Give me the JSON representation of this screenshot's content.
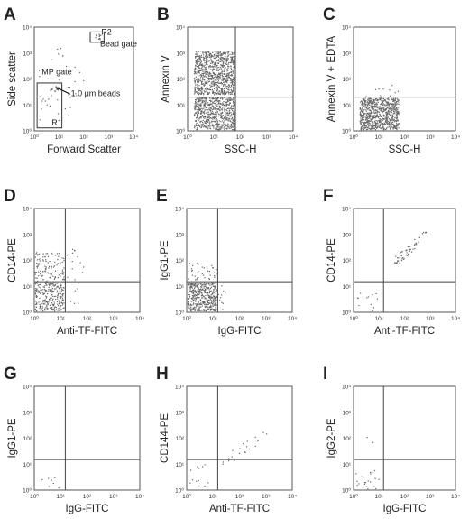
{
  "axis_tick_labels": [
    "10⁰",
    "10¹",
    "10²",
    "10³",
    "10⁴"
  ],
  "chart_data": [
    {
      "panel": "A",
      "type": "scatter",
      "xlabel": "Forward Scatter",
      "ylabel": "Side scatter",
      "xlim": [
        1,
        10000
      ],
      "ylim": [
        1,
        10000
      ],
      "scale": "log",
      "annotations": [
        {
          "text": "R2",
          "x": 500,
          "y": 5000
        },
        {
          "text": "Bead gate",
          "x": 450,
          "y": 1800
        },
        {
          "text": "MP gate",
          "x": 2,
          "y": 150
        },
        {
          "text": "1.0 μm beads",
          "x": 30,
          "y": 22
        },
        {
          "text": "R1",
          "x": 5,
          "y": 1.6
        }
      ],
      "gates": [
        {
          "name": "R2",
          "x": [
            180,
            650
          ],
          "y": [
            2600,
            6500
          ]
        },
        {
          "name": "R1",
          "x": [
            1.3,
            13
          ],
          "y": [
            1.3,
            70
          ]
        }
      ],
      "clusters": [
        {
          "x": [
            280,
            520
          ],
          "y": [
            3000,
            5200
          ],
          "n": 12
        },
        {
          "x": [
            4,
            8
          ],
          "y": [
            30,
            55
          ],
          "n": 8
        },
        {
          "x": [
            1.5,
            100
          ],
          "y": [
            4,
            2000
          ],
          "n": 28
        },
        {
          "x": [
            1.5,
            6
          ],
          "y": [
            1.3,
            25
          ],
          "n": 8
        }
      ]
    },
    {
      "panel": "B",
      "type": "scatter",
      "xlabel": "SSC-H",
      "ylabel": "Annexin V",
      "xlim": [
        1,
        10000
      ],
      "ylim": [
        1,
        10000
      ],
      "scale": "log",
      "quadrant": {
        "x": 65,
        "y": 20
      },
      "clusters": [
        {
          "x": [
            1.8,
            65
          ],
          "y": [
            25,
            1200
          ],
          "n": 900
        },
        {
          "x": [
            1.8,
            65
          ],
          "y": [
            1.1,
            20
          ],
          "n": 650
        }
      ]
    },
    {
      "panel": "C",
      "type": "scatter",
      "xlabel": "SSC-H",
      "ylabel": "Annexin V + EDTA",
      "xlim": [
        1,
        10000
      ],
      "ylim": [
        1,
        10000
      ],
      "scale": "log",
      "quadrant": {
        "y": 20
      },
      "clusters": [
        {
          "x": [
            1.8,
            60
          ],
          "y": [
            1.1,
            18
          ],
          "n": 800
        },
        {
          "x": [
            3,
            60
          ],
          "y": [
            20,
            60
          ],
          "n": 10
        }
      ]
    },
    {
      "panel": "D",
      "type": "scatter",
      "xlabel": "Anti-TF-FITC",
      "ylabel": "CD14-PE",
      "xlim": [
        1,
        10000
      ],
      "ylim": [
        1,
        10000
      ],
      "scale": "log",
      "quadrant": {
        "x": 15,
        "y": 15
      },
      "clusters": [
        {
          "x": [
            1.1,
            14
          ],
          "y": [
            1.1,
            14
          ],
          "n": 260
        },
        {
          "x": [
            1.1,
            14
          ],
          "y": [
            16,
            200
          ],
          "n": 110
        },
        {
          "x": [
            16,
            80
          ],
          "y": [
            16,
            300
          ],
          "n": 14
        },
        {
          "x": [
            16,
            60
          ],
          "y": [
            1.2,
            14
          ],
          "n": 6
        }
      ]
    },
    {
      "panel": "E",
      "type": "scatter",
      "xlabel": "IgG-FITC",
      "ylabel": "IgG1-PE",
      "xlim": [
        1,
        10000
      ],
      "ylim": [
        1,
        10000
      ],
      "scale": "log",
      "quadrant": {
        "x": 15,
        "y": 15
      },
      "clusters": [
        {
          "x": [
            1.1,
            14
          ],
          "y": [
            1.1,
            14
          ],
          "n": 420
        },
        {
          "x": [
            1.1,
            14
          ],
          "y": [
            16,
            80
          ],
          "n": 40
        },
        {
          "x": [
            16,
            40
          ],
          "y": [
            1.2,
            12
          ],
          "n": 10
        }
      ]
    },
    {
      "panel": "F",
      "type": "scatter",
      "xlabel": "Anti-TF-FITC",
      "ylabel": "CD14-PE",
      "xlim": [
        1,
        10000
      ],
      "ylim": [
        1,
        10000
      ],
      "scale": "log",
      "quadrant": {
        "x": 15,
        "y": 15
      },
      "clusters": [
        {
          "x": [
            40,
            800
          ],
          "y": [
            80,
            1200
          ],
          "n": 50,
          "diagonal": true
        },
        {
          "x": [
            1.3,
            12
          ],
          "y": [
            1.1,
            6
          ],
          "n": 12
        }
      ]
    },
    {
      "panel": "G",
      "type": "scatter",
      "xlabel": "IgG-FITC",
      "ylabel": "IgG1-PE",
      "xlim": [
        1,
        10000
      ],
      "ylim": [
        1,
        10000
      ],
      "scale": "log",
      "quadrant": {
        "x": 15,
        "y": 15
      },
      "clusters": [
        {
          "x": [
            2,
            10
          ],
          "y": [
            1.1,
            3
          ],
          "n": 7
        }
      ]
    },
    {
      "panel": "H",
      "type": "scatter",
      "xlabel": "Anti-TF-FITC",
      "ylabel": "CD144-PE",
      "xlim": [
        1,
        10000
      ],
      "ylim": [
        1,
        10000
      ],
      "scale": "log",
      "quadrant": {
        "x": 15,
        "y": 15
      },
      "clusters": [
        {
          "x": [
            20,
            1500
          ],
          "y": [
            10,
            200
          ],
          "n": 22,
          "diagonal": true
        },
        {
          "x": [
            1.3,
            12
          ],
          "y": [
            1.2,
            12
          ],
          "n": 12
        }
      ]
    },
    {
      "panel": "I",
      "type": "scatter",
      "xlabel": "IgG-FITC",
      "ylabel": "IgG2-PE",
      "xlim": [
        1,
        10000
      ],
      "ylim": [
        1,
        10000
      ],
      "scale": "log",
      "quadrant": {
        "x": 15,
        "y": 15
      },
      "clusters": [
        {
          "x": [
            1.2,
            10
          ],
          "y": [
            1.1,
            6
          ],
          "n": 20
        },
        {
          "x": [
            3,
            8
          ],
          "y": [
            60,
            140
          ],
          "n": 2
        }
      ]
    }
  ]
}
